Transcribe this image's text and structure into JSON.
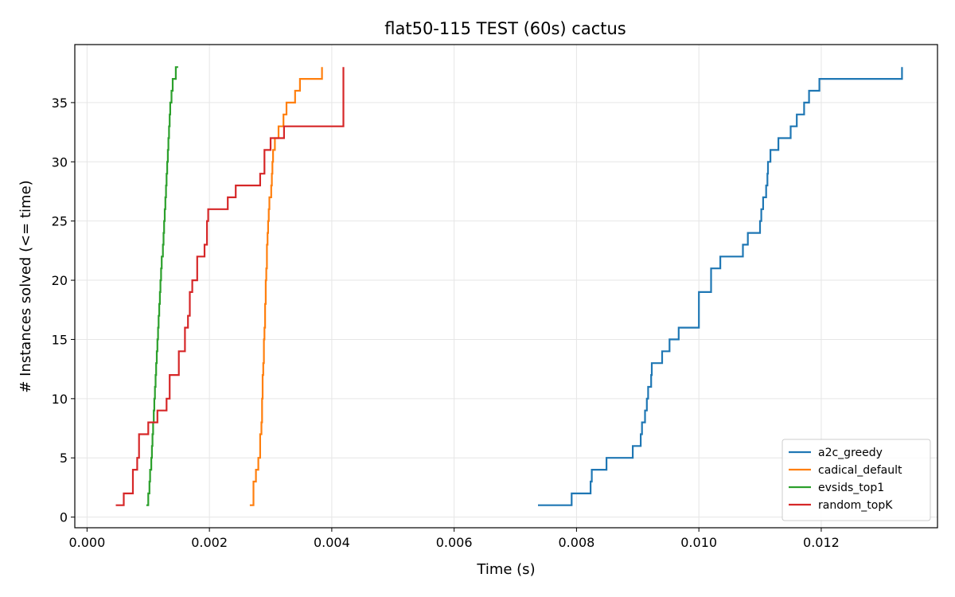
{
  "chart_data": {
    "type": "line",
    "title": "flat50-115 TEST (60s) cactus",
    "xlabel": "Time (s)",
    "ylabel": "# Instances solved (<= time)",
    "xlim": [
      -0.0002,
      0.0139
    ],
    "ylim": [
      -0.9,
      39.9
    ],
    "xticks": [
      0.0,
      0.002,
      0.004,
      0.006,
      0.008,
      0.01,
      0.012
    ],
    "xtick_labels": [
      "0.000",
      "0.002",
      "0.004",
      "0.006",
      "0.008",
      "0.010",
      "0.012"
    ],
    "yticks": [
      0,
      5,
      10,
      15,
      20,
      25,
      30,
      35
    ],
    "ytick_labels": [
      "0",
      "5",
      "10",
      "15",
      "20",
      "25",
      "30",
      "35"
    ],
    "grid": true,
    "legend_position": "bottom-right",
    "step": "post",
    "series": [
      {
        "name": "a2c_greedy",
        "color": "#1f77b4",
        "x": [
          0.00737,
          0.00792,
          0.00823,
          0.00825,
          0.00827,
          0.00849,
          0.00892,
          0.00905,
          0.00907,
          0.00912,
          0.00915,
          0.00917,
          0.00922,
          0.00923,
          0.00924,
          0.00925,
          0.00926,
          0.0094,
          0.00952,
          0.00967,
          0.01,
          0.0102,
          0.01035,
          0.01072,
          0.0108,
          0.011,
          0.01102,
          0.01105,
          0.0111,
          0.01112,
          0.01113,
          0.01117,
          0.0113,
          0.0115,
          0.0116,
          0.01172,
          0.0118,
          0.01197,
          0.01332
        ],
        "y": [
          1,
          2,
          3,
          4,
          4,
          5,
          6,
          7,
          8,
          9,
          10,
          11,
          12,
          13,
          13,
          13,
          13,
          14,
          15,
          16,
          19,
          21,
          22,
          23,
          24,
          25,
          26,
          27,
          28,
          29,
          30,
          31,
          32,
          33,
          34,
          35,
          36,
          37,
          38
        ]
      },
      {
        "name": "cadical_default",
        "color": "#ff7f0e",
        "x": [
          0.00266,
          0.00272,
          0.00276,
          0.0028,
          0.00283,
          0.00285,
          0.00286,
          0.00287,
          0.00288,
          0.00289,
          0.0029,
          0.00291,
          0.00292,
          0.00293,
          0.00294,
          0.00295,
          0.00296,
          0.00297,
          0.00298,
          0.00301,
          0.00302,
          0.00303,
          0.00304,
          0.00307,
          0.00313,
          0.00321,
          0.00326,
          0.0034,
          0.00348,
          0.0035,
          0.00384
        ],
        "y": [
          1,
          3,
          4,
          5,
          7,
          8,
          10,
          12,
          13,
          15,
          16,
          18,
          20,
          21,
          23,
          24,
          25,
          26,
          27,
          28,
          29,
          30,
          31,
          32,
          33,
          34,
          35,
          36,
          37,
          37,
          38
        ]
      },
      {
        "name": "evsids_top1",
        "color": "#2ca02c",
        "x": [
          0.00097,
          0.001,
          0.00102,
          0.00103,
          0.00105,
          0.00106,
          0.00107,
          0.00108,
          0.00109,
          0.0011,
          0.00111,
          0.00112,
          0.00113,
          0.00114,
          0.00115,
          0.00116,
          0.00117,
          0.00118,
          0.00119,
          0.0012,
          0.00121,
          0.00122,
          0.00124,
          0.00125,
          0.00126,
          0.00127,
          0.00128,
          0.00129,
          0.0013,
          0.00131,
          0.00132,
          0.00133,
          0.00134,
          0.00135,
          0.00136,
          0.00138,
          0.0014,
          0.00142,
          0.00145,
          0.00149
        ],
        "y": [
          1,
          2,
          3,
          4,
          5,
          6,
          7,
          8,
          9,
          10,
          11,
          12,
          13,
          14,
          15,
          16,
          17,
          18,
          19,
          20,
          21,
          22,
          23,
          24,
          25,
          26,
          27,
          28,
          29,
          30,
          31,
          32,
          33,
          34,
          35,
          36,
          37,
          37,
          38,
          38
        ]
      },
      {
        "name": "random_topK",
        "color": "#d62728",
        "x": [
          0.00047,
          0.0006,
          0.00075,
          0.00082,
          0.00085,
          0.001,
          0.00115,
          0.0013,
          0.00135,
          0.0015,
          0.0016,
          0.00165,
          0.00168,
          0.00172,
          0.0018,
          0.00192,
          0.00196,
          0.00198,
          0.0023,
          0.00243,
          0.00283,
          0.0029,
          0.003,
          0.00322,
          0.00419
        ],
        "y": [
          1,
          2,
          4,
          5,
          7,
          8,
          9,
          10,
          12,
          14,
          16,
          17,
          19,
          20,
          22,
          23,
          25,
          26,
          27,
          28,
          29,
          31,
          32,
          33,
          38
        ]
      }
    ]
  }
}
